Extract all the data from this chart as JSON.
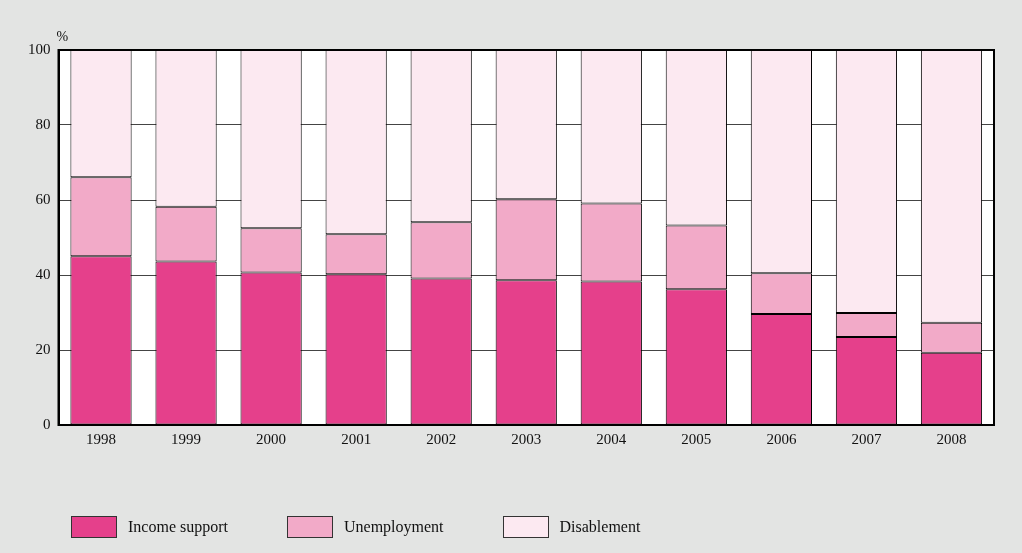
{
  "chart_data": {
    "type": "bar",
    "stacked": true,
    "ylabel": "%",
    "categories": [
      "1998",
      "1999",
      "2000",
      "2001",
      "2002",
      "2003",
      "2004",
      "2005",
      "2006",
      "2007",
      "2008"
    ],
    "series": [
      {
        "name": "Income support",
        "color": "#e5408b",
        "values": [
          45.0,
          43.6,
          40.7,
          40.2,
          39.1,
          38.6,
          38.3,
          36.2,
          29.6,
          23.5,
          19.3
        ]
      },
      {
        "name": "Unemployment",
        "color": "#f2aac8",
        "values": [
          21.1,
          14.6,
          11.8,
          10.7,
          15.0,
          21.6,
          20.8,
          17.0,
          10.9,
          6.4,
          8.0
        ]
      },
      {
        "name": "Disablement",
        "color": "#fce9f1",
        "values": [
          33.9,
          41.8,
          47.5,
          49.1,
          45.9,
          39.8,
          40.9,
          46.8,
          59.5,
          70.1,
          72.7
        ]
      }
    ],
    "ylim": [
      0,
      100
    ],
    "yticks": [
      0,
      20,
      40,
      60,
      80,
      100
    ],
    "grid": "y",
    "legend": "bottom"
  }
}
